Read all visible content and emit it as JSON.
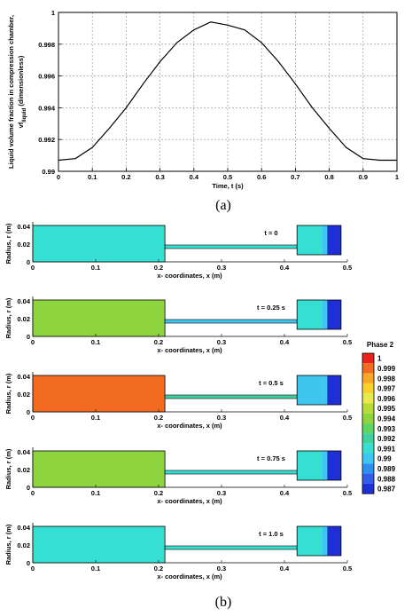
{
  "labels": {
    "panel_a": "(a)",
    "panel_b": "(b)"
  },
  "chart_data": [
    {
      "type": "line",
      "xlabel": "Time, t (s)",
      "ylabel": "Liquid volume fraction in compression chamber,",
      "ylabel2": "vf",
      "ylabel2_sub": "liquid",
      "ylabel2_suffix": " (dimensionless)",
      "xlim": [
        0,
        1
      ],
      "ylim": [
        0.99,
        1.0
      ],
      "xticks": [
        "0",
        "0.1",
        "0.2",
        "0.3",
        "0.4",
        "0.5",
        "0.6",
        "0.7",
        "0.8",
        "0.9",
        "1"
      ],
      "yticks": [
        "0.99",
        "0.992",
        "0.994",
        "0.996",
        "0.998",
        "1"
      ],
      "grid": true,
      "series": [
        {
          "x": [
            0,
            0.05,
            0.1,
            0.15,
            0.2,
            0.25,
            0.3,
            0.35,
            0.4,
            0.45,
            0.5,
            0.55,
            0.6,
            0.65,
            0.7,
            0.75,
            0.8,
            0.85,
            0.9,
            0.95,
            1.0
          ],
          "y": [
            0.9907,
            0.9908,
            0.9915,
            0.9927,
            0.994,
            0.9955,
            0.9969,
            0.9981,
            0.9989,
            0.9994,
            0.9992,
            0.9989,
            0.9981,
            0.9969,
            0.9955,
            0.994,
            0.9927,
            0.9915,
            0.9908,
            0.9907,
            0.9907
          ]
        }
      ]
    },
    {
      "type": "heatmap",
      "xlabel": "x- coordinates, x (m)",
      "ylabel": "Radius, r (m)",
      "xticks": [
        "0",
        "0.1",
        "0.2",
        "0.3",
        "0.4",
        "0.5"
      ],
      "yticks": [
        "0",
        "0.02",
        "0.04"
      ],
      "colorbar": {
        "title": "Phase 2",
        "levels": [
          "1",
          "0.999",
          "0.998",
          "0.997",
          "0.996",
          "0.995",
          "0.994",
          "0.993",
          "0.992",
          "0.991",
          "0.99",
          "0.989",
          "0.988",
          "0.987"
        ],
        "colors": [
          "#e8231b",
          "#f36a21",
          "#f9a825",
          "#fbd02a",
          "#e8e84a",
          "#b7dc3a",
          "#8ed43e",
          "#5fd45e",
          "#3fd2a0",
          "#35e0d2",
          "#3fc6f0",
          "#2d8ff0",
          "#2f5ee8",
          "#1e2fd6"
        ]
      },
      "panels": [
        {
          "label": "t = 0",
          "reservoir": "#35e0d2",
          "channel": "#35e0d2",
          "chamber_left": "#35e0d2",
          "chamber_mid": "#3fc6f0",
          "chamber_right": "#1e2fd6"
        },
        {
          "label": "t = 0.25 s",
          "reservoir": "#8ed43e",
          "channel": "#3fc6f0",
          "chamber_left": "#35e0d2",
          "chamber_mid": "#3fc6f0",
          "chamber_right": "#1e2fd6"
        },
        {
          "label": "t = 0.5 s",
          "reservoir": "#f36a21",
          "channel": "#3fd2a0",
          "chamber_left": "#3fc6f0",
          "chamber_mid": "#3fc6f0",
          "chamber_right": "#1e2fd6"
        },
        {
          "label": "t = 0.75 s",
          "reservoir": "#8ed43e",
          "channel": "#35e0d2",
          "chamber_left": "#35e0d2",
          "chamber_mid": "#3fc6f0",
          "chamber_right": "#1e2fd6"
        },
        {
          "label": "t = 1.0 s",
          "reservoir": "#35e0d2",
          "channel": "#35e0d2",
          "chamber_left": "#35e0d2",
          "chamber_mid": "#3fc6f0",
          "chamber_right": "#1e2fd6"
        }
      ]
    }
  ]
}
